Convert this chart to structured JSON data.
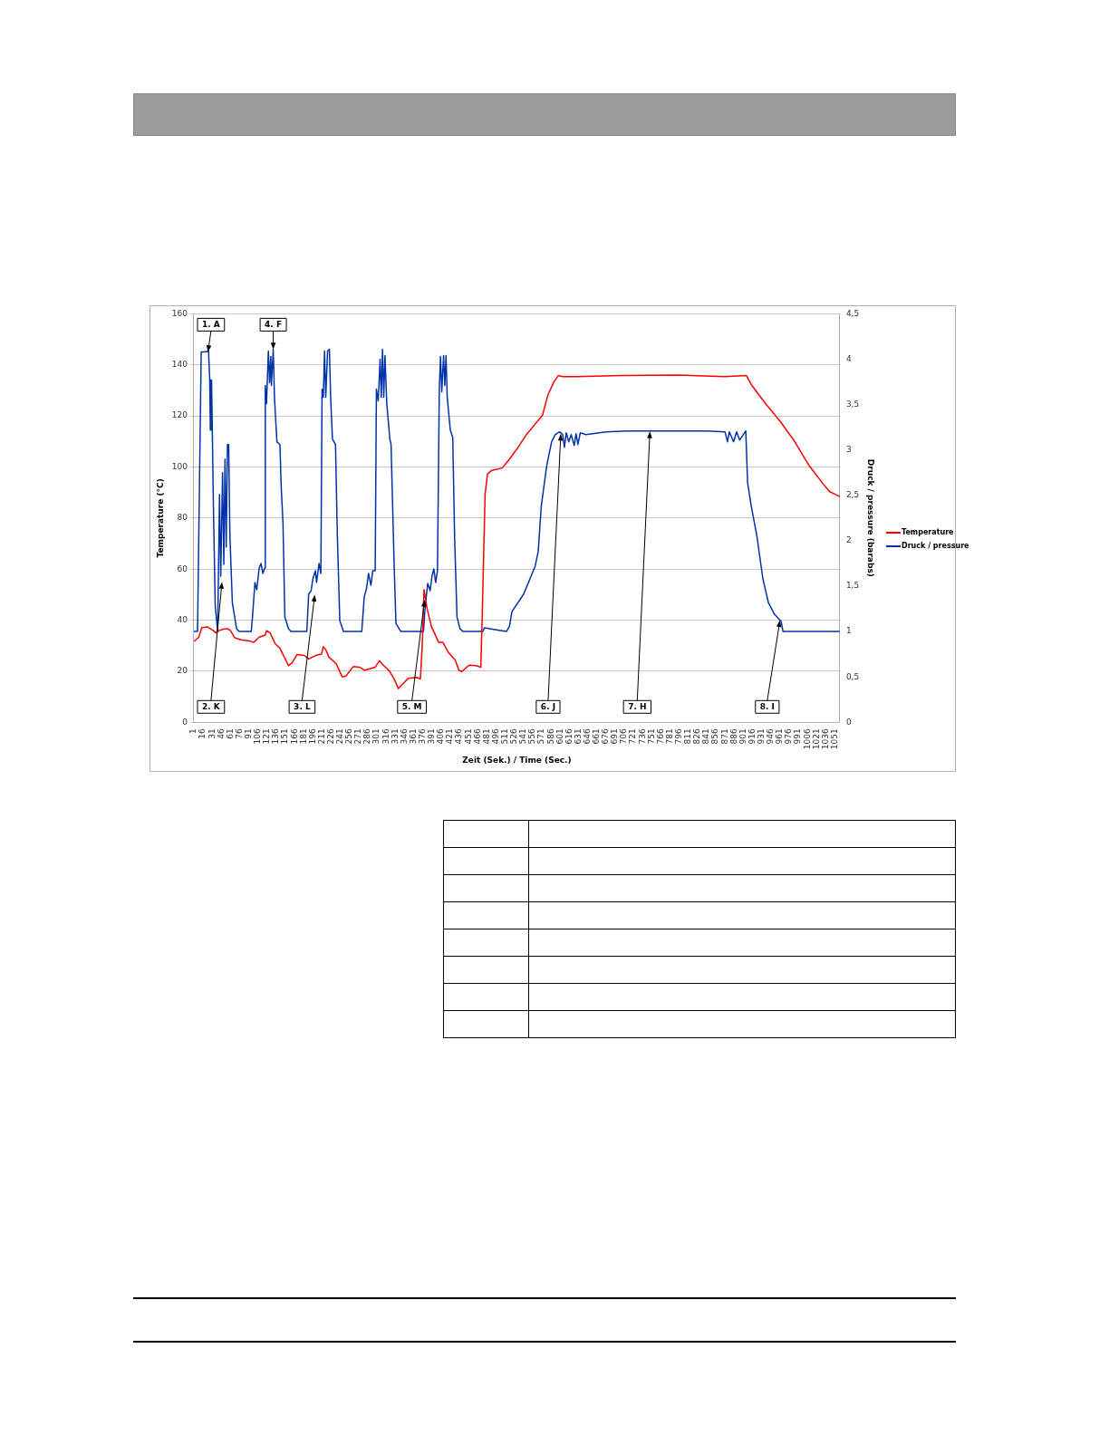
{
  "chart_data": {
    "type": "line",
    "xlabel": "Zeit (Sek.) / Time (Sec.)",
    "ylabel": "Temperature (°C)",
    "y2label": "Druck / pressure (barabs)",
    "xlim": [
      1,
      1059
    ],
    "xticks": [
      1,
      16,
      31,
      46,
      61,
      76,
      91,
      106,
      121,
      136,
      151,
      166,
      181,
      196,
      211,
      226,
      241,
      256,
      271,
      286,
      301,
      316,
      331,
      346,
      361,
      376,
      391,
      406,
      421,
      436,
      451,
      466,
      481,
      496,
      511,
      526,
      541,
      556,
      571,
      586,
      601,
      616,
      631,
      646,
      661,
      676,
      691,
      706,
      721,
      736,
      751,
      766,
      781,
      796,
      811,
      826,
      841,
      856,
      871,
      886,
      901,
      916,
      931,
      946,
      961,
      976,
      991,
      1006,
      1021,
      1036,
      1051
    ],
    "ylim": [
      0,
      160
    ],
    "yticks": [
      0,
      20,
      40,
      60,
      80,
      100,
      120,
      140,
      160
    ],
    "y2lim": [
      0,
      4.5
    ],
    "y2ticks": [
      0,
      {
        "value": 0.5,
        "label": "0,5"
      },
      1,
      {
        "value": 1.5,
        "label": "1,5"
      },
      2,
      {
        "value": 2.5,
        "label": "2,5"
      },
      3,
      {
        "value": 3.5,
        "label": "3,5"
      },
      4,
      {
        "value": 4.5,
        "label": "4,5"
      }
    ],
    "grid": "y",
    "legend": "right",
    "marker": "none",
    "line_style": "solid",
    "series": [
      {
        "name": "Temperature",
        "color": "#ff0000",
        "x": [
          1,
          9,
          14,
          23,
          33,
          37,
          42,
          49,
          56,
          61,
          68,
          78,
          92,
          99,
          108,
          118,
          120,
          126,
          134,
          142,
          149,
          156,
          162,
          170,
          182,
          189,
          201,
          210,
          213,
          217,
          222,
          234,
          244,
          250,
          262,
          272,
          281,
          298,
          305,
          312,
          321,
          329,
          336,
          343,
          352,
          366,
          372,
          375,
          378,
          383,
          390,
          402,
          409,
          418,
          429,
          435,
          440,
          452,
          463,
          471,
          473,
          478,
          482,
          489,
          506,
          518,
          532,
          546,
          560,
          572,
          581,
          591,
          598,
          605,
          629,
          700,
          795,
          871,
          906,
          914,
          937,
          961,
          985,
          1008,
          1032,
          1042,
          1059
        ],
        "values": [
          31.7,
          33.3,
          37.1,
          37.4,
          35.9,
          35.0,
          35.9,
          36.5,
          36.7,
          35.9,
          33.1,
          32.3,
          31.9,
          31.3,
          33.4,
          34.2,
          35.9,
          35.0,
          30.8,
          29.0,
          25.6,
          22.2,
          23.4,
          26.5,
          26.2,
          24.8,
          26.2,
          26.7,
          29.6,
          28.5,
          25.6,
          23.0,
          17.8,
          18.1,
          21.8,
          21.6,
          20.4,
          21.6,
          24.1,
          22.2,
          20.2,
          17.0,
          13.2,
          14.9,
          17.2,
          17.6,
          17.0,
          29.6,
          52.0,
          44.5,
          37.6,
          31.3,
          31.3,
          27.3,
          24.4,
          20.4,
          19.9,
          22.4,
          22.2,
          21.6,
          38.8,
          89.3,
          97.3,
          98.7,
          99.6,
          103.1,
          107.7,
          112.8,
          116.8,
          120.3,
          128.3,
          133.5,
          135.8,
          135.4,
          135.4,
          135.8,
          136.0,
          135.4,
          135.8,
          132.3,
          124.9,
          118.0,
          110.0,
          100.8,
          93.3,
          90.4,
          88.4
        ]
      },
      {
        "name": "Druck / pressure",
        "color": "#0033aa",
        "axis": "y2",
        "x": [
          1,
          7,
          13,
          18,
          25,
          27,
          28,
          29,
          30,
          33,
          36,
          40,
          43,
          45,
          48,
          50,
          52,
          54,
          56,
          58,
          60,
          64,
          71,
          75,
          95,
          97,
          101,
          104,
          108,
          111,
          114,
          117,
          118,
          120,
          123,
          125,
          127,
          128,
          131,
          133,
          137,
          142,
          144,
          147,
          150,
          156,
          160,
          186,
          189,
          193,
          196,
          200,
          202,
          206,
          209,
          211,
          213,
          215,
          217,
          220,
          223,
          225,
          228,
          233,
          236,
          240,
          246,
          276,
          280,
          284,
          287,
          291,
          294,
          298,
          300,
          303,
          306,
          308,
          310,
          312,
          314,
          317,
          322,
          324,
          329,
          332,
          340,
          377,
          380,
          384,
          388,
          391,
          394,
          397,
          400,
          403,
          405,
          407,
          410,
          412,
          414,
          416,
          421,
          425,
          428,
          432,
          437,
          442,
          474,
          477,
          494,
          513,
          518,
          522,
          541,
          560,
          565,
          570,
          579,
          587,
          593,
          600,
          605,
          608,
          611,
          615,
          619,
          624,
          627,
          630,
          634,
          643,
          676,
          710,
          748,
          795,
          842,
          871,
          875,
          878,
          885,
          890,
          895,
          905,
          908,
          914,
          923,
          933,
          942,
          952,
          959,
          963,
          966,
          1059
        ],
        "values": [
          1.0,
          1.0,
          4.08,
          4.08,
          4.09,
          3.77,
          3.22,
          3.77,
          3.77,
          2.38,
          1.28,
          1.0,
          2.51,
          1.61,
          2.75,
          1.74,
          2.9,
          1.93,
          3.06,
          3.06,
          2.06,
          1.32,
          1.03,
          1.0,
          1.0,
          1.16,
          1.54,
          1.46,
          1.7,
          1.75,
          1.64,
          1.7,
          3.71,
          3.51,
          4.09,
          3.74,
          4.03,
          3.71,
          4.11,
          3.58,
          3.09,
          3.06,
          2.6,
          2.19,
          1.16,
          1.03,
          1.0,
          1.0,
          1.41,
          1.45,
          1.58,
          1.67,
          1.54,
          1.75,
          1.64,
          3.67,
          3.58,
          4.09,
          3.58,
          4.09,
          4.11,
          3.58,
          3.12,
          3.06,
          2.06,
          1.12,
          1.0,
          1.0,
          1.38,
          1.48,
          1.64,
          1.51,
          1.67,
          1.67,
          3.67,
          3.54,
          4.0,
          3.58,
          4.11,
          3.58,
          4.04,
          3.51,
          3.12,
          3.06,
          1.74,
          1.09,
          1.0,
          1.0,
          1.28,
          1.53,
          1.45,
          1.61,
          1.69,
          1.54,
          1.67,
          3.67,
          4.03,
          3.64,
          4.04,
          3.71,
          4.04,
          3.58,
          3.22,
          3.14,
          2.06,
          1.16,
          1.03,
          1.0,
          1.0,
          1.04,
          1.02,
          1.0,
          1.06,
          1.22,
          1.41,
          1.72,
          1.88,
          2.38,
          2.83,
          3.09,
          3.17,
          3.2,
          3.17,
          3.03,
          3.19,
          3.09,
          3.17,
          3.05,
          3.18,
          3.06,
          3.19,
          3.17,
          3.2,
          3.21,
          3.21,
          3.21,
          3.21,
          3.2,
          3.09,
          3.2,
          3.09,
          3.2,
          3.11,
          3.21,
          2.64,
          2.38,
          2.06,
          1.58,
          1.32,
          1.19,
          1.14,
          1.11,
          1.0,
          1.0
        ]
      }
    ],
    "annotations": [
      {
        "text": "1. A",
        "x": 24,
        "y": 145
      },
      {
        "text": "4. F",
        "x": 131,
        "y": 146
      },
      {
        "text": "6. J",
        "x": 602,
        "y": 113
      },
      {
        "text": "2. K",
        "x": 47,
        "y": 55
      },
      {
        "text": "3. L",
        "x": 199,
        "y": 50
      },
      {
        "text": "5. M",
        "x": 379,
        "y": 48
      },
      {
        "text": "7. H",
        "x": 748,
        "y": 114
      },
      {
        "text": "8. I",
        "x": 961,
        "y": 40
      }
    ]
  }
}
